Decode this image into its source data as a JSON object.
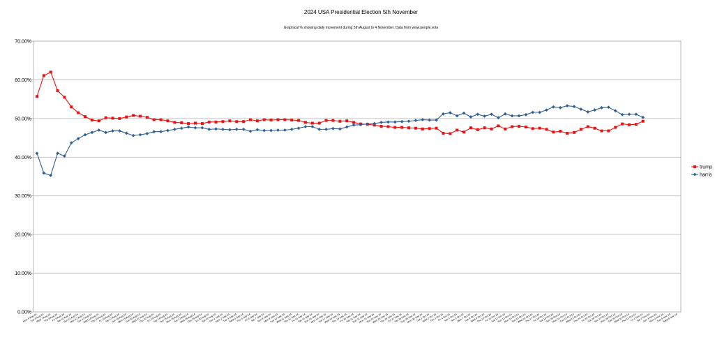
{
  "chart_data": {
    "type": "line",
    "title": "2024 USA Presidential Election 5th November",
    "subtitle": "Graphical % showing daily movement during 5th August to 4 November. Data from www.people.vote",
    "xlabel": "",
    "ylabel": "",
    "ylim": [
      0,
      0.7
    ],
    "yticks": [
      "0.00%",
      "10.00%",
      "20.00%",
      "30.00%",
      "40.00%",
      "50.00%",
      "60.00%",
      "70.00%"
    ],
    "grid": true,
    "legend_position": "right",
    "categories": [
      "Mon 5 Aug 24",
      "Tue 6 Aug 24",
      "Wed 7 Aug 24",
      "Thu 8 Aug 24",
      "Fri 9 Aug 24",
      "Sat 10 Aug 24",
      "Sun 11 Aug 24",
      "Mon 12 Aug 24",
      "Tue 13 Aug 24",
      "Wed 14 Aug 24",
      "Thu 15 Aug 24",
      "Fri 16 Aug 24",
      "Sat 17 Aug 24",
      "Sun 18 Aug 24",
      "Mon 19 Aug 24",
      "Tue 20 Aug 24",
      "Wed 21 Aug 24",
      "Thu 22 Aug 24",
      "Fri 23 Aug 24",
      "Sat 24 Aug 24",
      "Sun 25 Aug 24",
      "Mon 26 Aug 24",
      "Tue 27 Aug 24",
      "Wed 28 Aug 24",
      "Thu 29 Aug 24",
      "Fri 30 Aug 24",
      "Sat 31 Aug 24",
      "Sun 1 Sep 24",
      "Mon 2 Sep 24",
      "Tue 3 Sep 24",
      "Wed 4 Sep 24",
      "Thu 5 Sep 24",
      "Fri 6 Sep 24",
      "Sat 7 Sep 24",
      "Sun 8 Sep 24",
      "Mon 9 Sep 24",
      "Tue 10 Sep 24",
      "Wed 11 Sep 24",
      "Thu 12 Sep 24",
      "Fri 13 Sep 24",
      "Sat 14 Sep 24",
      "Sun 15 Sep 24",
      "Mon 16 Sep 24",
      "Tue 17 Sep 24",
      "Wed 18 Sep 24",
      "Thu 19 Sep 24",
      "Fri 20 Sep 24",
      "Sat 21 Sep 24",
      "Sun 22 Sep 24",
      "Mon 23 Sep 24",
      "Tue 24 Sep 24",
      "Wed 25 Sep 24",
      "Thu 26 Sep 24",
      "Fri 27 Sep 24",
      "Sat 28 Sep 24",
      "Sun 29 Sep 24",
      "Mon 30 Sep 24",
      "Tue 1 Oct 24",
      "Wed 2 Oct 24",
      "Thu 3 Oct 24",
      "Fri 4 Oct 24",
      "Sat 5 Oct 24",
      "Sun 6 Oct 24",
      "Mon 7 Oct 24",
      "Tue 8 Oct 24",
      "Wed 9 Oct 24",
      "Thu 10 Oct 24",
      "Fri 11 Oct 24",
      "Sat 12 Oct 24",
      "Sun 13 Oct 24",
      "Mon 14 Oct 24",
      "Tue 15 Oct 24",
      "Wed 16 Oct 24",
      "Thu 17 Oct 24",
      "Fri 18 Oct 24",
      "Sat 19 Oct 24",
      "Sun 20 Oct 24",
      "Mon 21 Oct 24",
      "Tue 22 Oct 24",
      "Wed 23 Oct 24",
      "Thu 24 Oct 24",
      "Fri 25 Oct 24",
      "Sat 26 Oct 24",
      "Sun 27 Oct 24",
      "Mon 28 Oct 24",
      "Tue 29 Oct 24",
      "Wed 30 Oct 24",
      "Thu 31 Oct 24",
      "Fri 1 Nov 24",
      "Sat 2 Nov 24",
      "Sun 3 Nov 24",
      "Mon 4 Nov 24",
      "Tue 5 Nov 24",
      "Wed 6 Nov 24"
    ],
    "series": [
      {
        "name": "trump",
        "color": "#ee1111",
        "marker": "square",
        "values": [
          0.557,
          0.611,
          0.62,
          0.572,
          0.555,
          0.53,
          0.515,
          0.505,
          0.496,
          0.494,
          0.502,
          0.501,
          0.5,
          0.504,
          0.508,
          0.506,
          0.503,
          0.497,
          0.497,
          0.494,
          0.49,
          0.489,
          0.487,
          0.488,
          0.487,
          0.491,
          0.491,
          0.492,
          0.494,
          0.492,
          0.492,
          0.497,
          0.494,
          0.497,
          0.496,
          0.497,
          0.497,
          0.496,
          0.495,
          0.49,
          0.488,
          0.488,
          0.495,
          0.495,
          0.493,
          0.494,
          0.49,
          0.486,
          0.485,
          0.483,
          0.48,
          0.479,
          0.477,
          0.477,
          0.476,
          0.475,
          0.473,
          0.474,
          0.475,
          0.462,
          0.461,
          0.47,
          0.465,
          0.476,
          0.471,
          0.476,
          0.473,
          0.481,
          0.473,
          0.479,
          0.48,
          0.478,
          0.474,
          0.475,
          0.472,
          0.465,
          0.467,
          0.462,
          0.464,
          0.472,
          0.479,
          0.475,
          0.468,
          0.468,
          0.477,
          0.486,
          0.484,
          0.485,
          0.493,
          null,
          null,
          null,
          null,
          null
        ]
      },
      {
        "name": "harris",
        "color": "#2d5f96",
        "marker": "diamond",
        "values": [
          0.41,
          0.359,
          0.353,
          0.41,
          0.403,
          0.437,
          0.448,
          0.458,
          0.464,
          0.47,
          0.464,
          0.468,
          0.468,
          0.462,
          0.456,
          0.458,
          0.461,
          0.466,
          0.466,
          0.469,
          0.472,
          0.475,
          0.478,
          0.476,
          0.476,
          0.472,
          0.473,
          0.472,
          0.471,
          0.472,
          0.472,
          0.467,
          0.471,
          0.469,
          0.469,
          0.47,
          0.47,
          0.472,
          0.475,
          0.479,
          0.479,
          0.472,
          0.472,
          0.474,
          0.473,
          0.478,
          0.483,
          0.484,
          0.486,
          0.487,
          0.49,
          0.491,
          0.491,
          0.492,
          0.493,
          0.495,
          0.497,
          0.496,
          0.496,
          0.512,
          0.515,
          0.507,
          0.514,
          0.504,
          0.511,
          0.506,
          0.511,
          0.502,
          0.512,
          0.507,
          0.507,
          0.51,
          0.516,
          0.516,
          0.522,
          0.53,
          0.528,
          0.533,
          0.531,
          0.524,
          0.517,
          0.522,
          0.528,
          0.529,
          0.52,
          0.51,
          0.511,
          0.511,
          0.503,
          null,
          null,
          null,
          null,
          null
        ]
      }
    ]
  }
}
